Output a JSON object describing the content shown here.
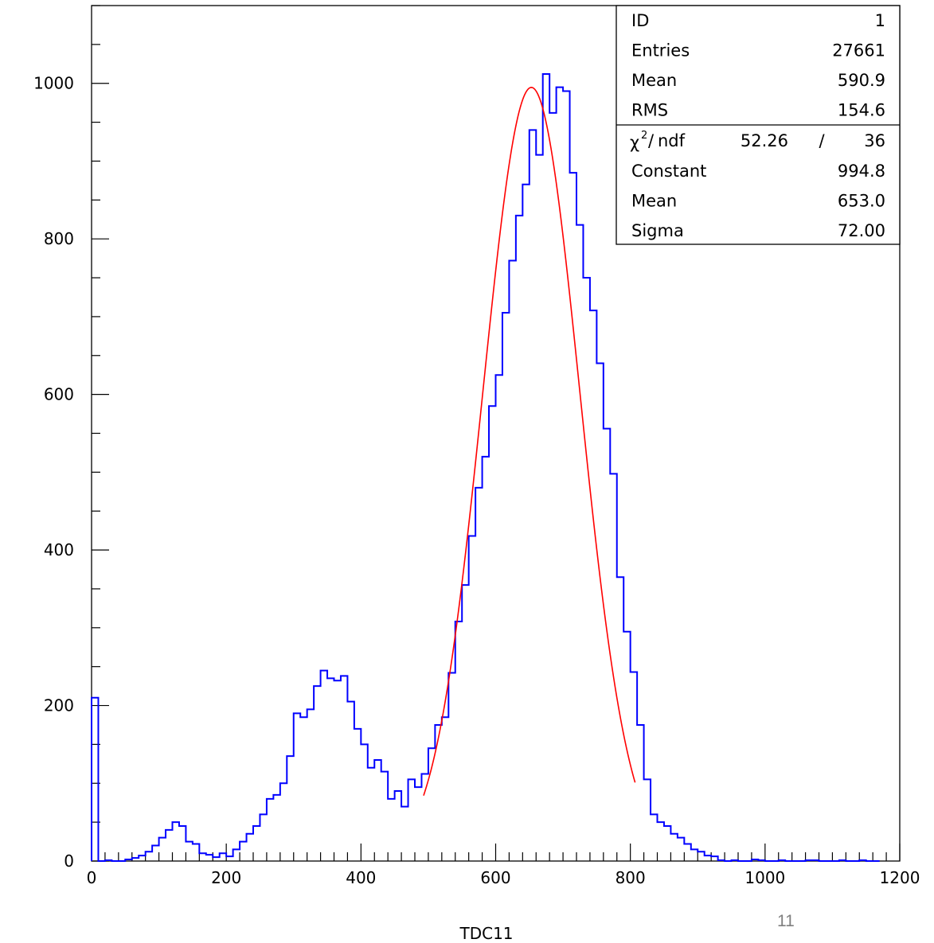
{
  "chart_data": {
    "type": "histogram",
    "xlabel": "TDC11",
    "xlim": [
      0,
      1200
    ],
    "ylim": [
      0,
      1100
    ],
    "x_ticks": [
      "0",
      "200",
      "400",
      "600",
      "800",
      "1000",
      "1200"
    ],
    "y_ticks": [
      "0",
      "200",
      "400",
      "600",
      "800",
      "1000"
    ],
    "bin_width": 10,
    "bin_start": 0,
    "counts": [
      210,
      0,
      1,
      0,
      0,
      2,
      4,
      7,
      12,
      20,
      30,
      40,
      50,
      45,
      25,
      22,
      10,
      8,
      5,
      10,
      6,
      15,
      25,
      35,
      45,
      60,
      80,
      85,
      100,
      135,
      190,
      185,
      195,
      225,
      245,
      235,
      232,
      238,
      205,
      170,
      150,
      120,
      130,
      115,
      80,
      90,
      70,
      105,
      95,
      112,
      145,
      175,
      185,
      242,
      308,
      355,
      418,
      480,
      520,
      585,
      625,
      705,
      772,
      830,
      870,
      940,
      908,
      1012,
      962,
      995,
      990,
      885,
      818,
      750,
      708,
      640,
      556,
      498,
      365,
      295,
      243,
      175,
      105,
      60,
      50,
      45,
      35,
      30,
      22,
      15,
      12,
      7,
      6,
      1,
      0,
      1,
      0,
      0,
      2,
      1,
      0,
      0,
      1,
      0,
      0,
      0,
      1,
      1,
      0,
      0,
      0,
      1,
      0,
      0,
      1,
      0,
      0
    ],
    "histogram_color": "#0000ff",
    "fit": {
      "function": "gaussian",
      "constant": 994.8,
      "mean": 653.0,
      "sigma": 72.0,
      "range": [
        493,
        807
      ],
      "color": "#ff0000"
    },
    "stats_box": {
      "placement": "top-right",
      "rows": [
        {
          "label": "ID",
          "value": "1"
        },
        {
          "label": "Entries",
          "value": "27661"
        },
        {
          "label": "Mean",
          "value": "590.9"
        },
        {
          "label": "RMS",
          "value": "154.6"
        }
      ],
      "fit_rows": [
        {
          "label": "Constant",
          "value": "994.8"
        },
        {
          "label": "Mean",
          "value": "653.0"
        },
        {
          "label": "Sigma",
          "value": "72.00"
        }
      ],
      "chi2_label": "ndf",
      "chi2_value": "52.26",
      "chi2_sep": "/",
      "ndf_value": "36"
    }
  },
  "page": {
    "slide_number": "11"
  }
}
